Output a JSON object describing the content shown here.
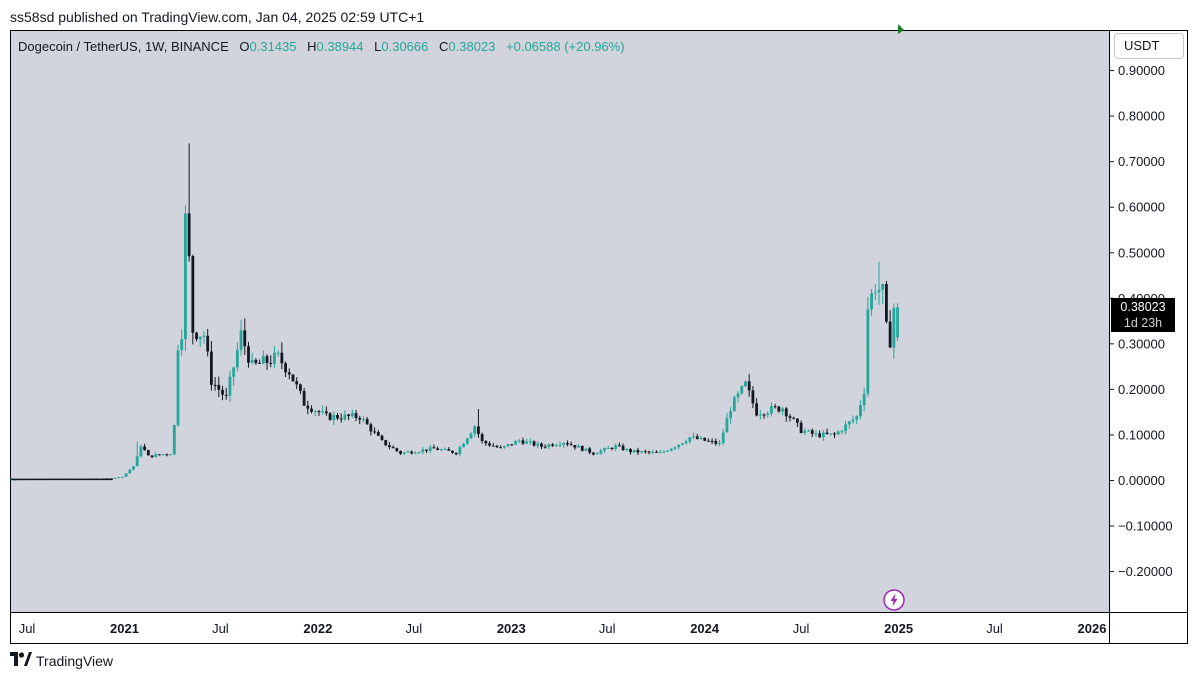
{
  "published": "ss58sd published on TradingView.com, Jan 04, 2025 02:59 UTC+1",
  "legend": {
    "symbol": "Dogecoin / TetherUS, 1W, BINANCE",
    "open_label": "O",
    "open": "0.31435",
    "high_label": "H",
    "high": "0.38944",
    "low_label": "L",
    "low": "0.30666",
    "close_label": "C",
    "close": "0.38023",
    "change": "+0.06588 (+20.96%)"
  },
  "currency": "USDT",
  "price_tag": {
    "price": "0.38023",
    "countdown": "1d 23h"
  },
  "brand": "TradingView",
  "colors": {
    "up": "#26a69a",
    "down": "#131722",
    "plot_bg": "#d1d4dc",
    "flag": "#1b7a2b",
    "bolt": "#9c27b0"
  },
  "icons": [
    "tradingview-logo-icon",
    "lightning-icon",
    "flag-icon"
  ],
  "chart_data": {
    "type": "candlestick",
    "interval": "1W",
    "y_axis": {
      "ticks": [
        "0.90000",
        "0.80000",
        "0.70000",
        "0.60000",
        "0.50000",
        "0.40000",
        "0.30000",
        "0.20000",
        "0.10000",
        "0.00000",
        "−0.10000",
        "−0.20000"
      ],
      "range": [
        -0.29,
        0.97
      ]
    },
    "x_axis": {
      "ticks": [
        "Jul",
        "2021",
        "Jul",
        "2022",
        "Jul",
        "2023",
        "Jul",
        "2024",
        "Jul",
        "2025",
        "Jul",
        "2026"
      ],
      "range": [
        "2020-06",
        "2026-02"
      ]
    },
    "last_price": 0.38023,
    "price_path": [
      [
        "2020-06-01",
        0.0026
      ],
      [
        "2020-12-15",
        0.0045
      ],
      [
        "2021-01-05",
        0.009
      ],
      [
        "2021-01-28",
        0.035
      ],
      [
        "2021-02-08",
        0.078
      ],
      [
        "2021-02-22",
        0.053
      ],
      [
        "2021-04-05",
        0.06
      ],
      [
        "2021-04-12",
        0.12
      ],
      [
        "2021-04-19",
        0.3
      ],
      [
        "2021-04-26",
        0.33
      ],
      [
        "2021-05-03",
        0.57
      ],
      [
        "2021-05-10",
        0.48
      ],
      [
        "2021-05-17",
        0.33
      ],
      [
        "2021-06-07",
        0.32
      ],
      [
        "2021-06-21",
        0.22
      ],
      [
        "2021-07-19",
        0.18
      ],
      [
        "2021-08-16",
        0.32
      ],
      [
        "2021-09-06",
        0.25
      ],
      [
        "2021-10-25",
        0.27
      ],
      [
        "2021-11-15",
        0.24
      ],
      [
        "2021-12-13",
        0.17
      ],
      [
        "2022-01-24",
        0.14
      ],
      [
        "2022-03-28",
        0.14
      ],
      [
        "2022-05-09",
        0.085
      ],
      [
        "2022-06-13",
        0.06
      ],
      [
        "2022-08-15",
        0.07
      ],
      [
        "2022-09-26",
        0.061
      ],
      [
        "2022-10-31",
        0.12
      ],
      [
        "2022-11-14",
        0.085
      ],
      [
        "2022-12-19",
        0.07
      ],
      [
        "2023-01-23",
        0.088
      ],
      [
        "2023-03-06",
        0.075
      ],
      [
        "2023-04-17",
        0.085
      ],
      [
        "2023-06-12",
        0.06
      ],
      [
        "2023-07-24",
        0.075
      ],
      [
        "2023-08-21",
        0.064
      ],
      [
        "2023-10-16",
        0.06
      ],
      [
        "2023-11-20",
        0.08
      ],
      [
        "2023-12-11",
        0.095
      ],
      [
        "2024-02-05",
        0.08
      ],
      [
        "2024-02-26",
        0.16
      ],
      [
        "2024-03-25",
        0.21
      ],
      [
        "2024-04-15",
        0.15
      ],
      [
        "2024-06-03",
        0.16
      ],
      [
        "2024-07-08",
        0.11
      ],
      [
        "2024-08-05",
        0.1
      ],
      [
        "2024-09-09",
        0.1
      ],
      [
        "2024-10-21",
        0.14
      ],
      [
        "2024-11-04",
        0.2
      ],
      [
        "2024-11-11",
        0.38
      ],
      [
        "2024-11-25",
        0.43
      ],
      [
        "2024-12-09",
        0.41
      ],
      [
        "2024-12-16",
        0.33
      ],
      [
        "2024-12-23",
        0.31
      ],
      [
        "2024-12-30",
        0.38023
      ]
    ],
    "last_candle": {
      "open": 0.31435,
      "high": 0.38944,
      "low": 0.30666,
      "close": 0.38023
    },
    "grid": false,
    "legend": "top-left"
  }
}
